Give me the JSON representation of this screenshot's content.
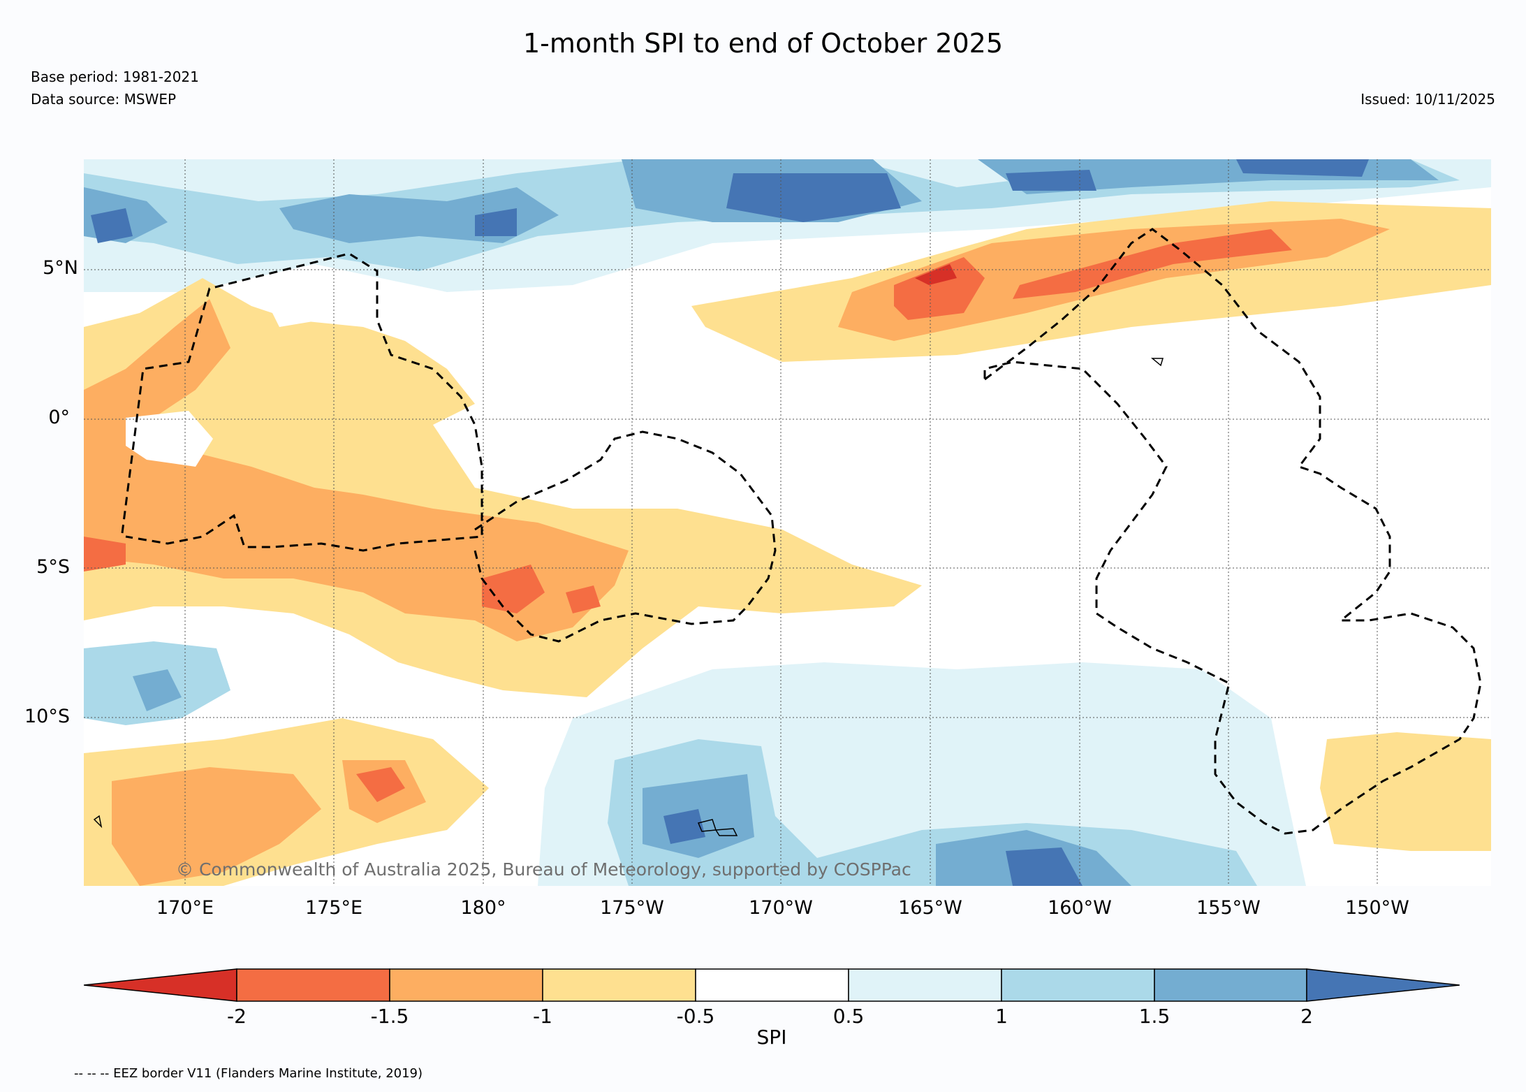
{
  "header": {
    "title": "1-month SPI to end of October 2025",
    "base_period": "Base period: 1981-2021",
    "data_source": "Data source: MSWEP",
    "issued": "Issued: 10/11/2025"
  },
  "map": {
    "lat_labels": [
      "5°N",
      "0°",
      "5°S",
      "10°S"
    ],
    "lon_labels": [
      "170°E",
      "175°E",
      "180°",
      "175°W",
      "170°W",
      "165°W",
      "160°W",
      "155°W",
      "150°W"
    ],
    "watermark": "© Commonwealth of Australia 2025, Bureau of Meteorology, supported by COSPPac"
  },
  "colorbar": {
    "label": "SPI",
    "ticks": [
      "-2",
      "-1.5",
      "-1",
      "-0.5",
      "0.5",
      "1",
      "1.5",
      "2"
    ],
    "colors": {
      "lt_-2": "#d73027",
      "-2_-1.5": "#f46d43",
      "-1.5_-1": "#fdae61",
      "-1_-0.5": "#fee090",
      "-0.5_0.5": "#ffffff",
      "0.5_1": "#e0f3f8",
      "1_1.5": "#abd9e9",
      "1.5_2": "#74add1",
      "gt_2": "#4575b4"
    }
  },
  "footnote": "-- -- -- EEZ border V11 (Flanders Marine Institute, 2019)"
}
